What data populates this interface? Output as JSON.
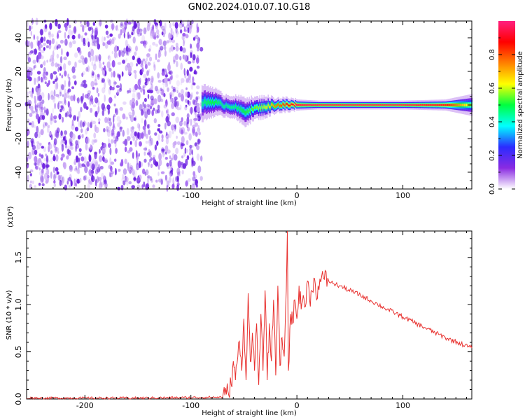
{
  "title": "GN02.2024.010.07.10.G18",
  "colors": {
    "snr_line": "#e8312f",
    "background": "#ffffff",
    "axes": "#000000",
    "noise_purple": "#6a1fe0",
    "colormap": [
      "#ffffff",
      "#8a2be2",
      "#2b2bff",
      "#00ffff",
      "#00ff40",
      "#ffff00",
      "#ff8000",
      "#ff0000",
      "#ff2080"
    ]
  },
  "chart_data": [
    {
      "type": "heatmap",
      "title": "GN02.2024.010.07.10.G18",
      "xlabel": "Height of straight line (km)",
      "ylabel": "Frequency (Hz)",
      "xlim": [
        -255,
        165
      ],
      "ylim": [
        -50,
        50
      ],
      "xticks": [
        -200,
        -100,
        0,
        100
      ],
      "yticks": [
        -40,
        -20,
        0,
        20,
        40
      ],
      "colorbar": {
        "label": "Normalized spectral amplitude",
        "range": [
          0.0,
          1.0
        ],
        "ticks": [
          "0.0",
          "0.2",
          "0.4",
          "0.6",
          "0.8"
        ]
      },
      "regions": {
        "noise": {
          "x_range": [
            -255,
            -90
          ],
          "freq_range": [
            -50,
            50
          ],
          "amplitude": 0.3
        },
        "signal_ridge": {
          "x": [
            -90,
            -80,
            -70,
            -60,
            -50,
            -40,
            -30,
            -20,
            -10,
            0,
            20,
            60,
            100,
            140,
            165
          ],
          "freq": [
            1,
            2,
            0,
            -1,
            -4,
            -2,
            -1,
            0,
            0,
            0,
            0,
            0,
            0,
            0,
            0
          ],
          "half_width_hz": [
            5,
            4,
            3,
            3,
            4,
            3,
            3,
            2,
            2,
            1.5,
            1.2,
            1.2,
            1.2,
            1.5,
            3
          ],
          "peak_amplitude": [
            0.45,
            0.5,
            0.45,
            0.45,
            0.5,
            0.55,
            0.6,
            0.75,
            0.85,
            0.95,
            0.95,
            0.95,
            0.95,
            0.9,
            0.55
          ]
        }
      }
    },
    {
      "type": "line",
      "xlabel": "Height of straight line (km)",
      "ylabel": "SNR (10 * v/v)",
      "y_multiplier": "(x10⁴)",
      "xlim": [
        -255,
        165
      ],
      "ylim": [
        0,
        17800
      ],
      "xticks": [
        -200,
        -100,
        0,
        100
      ],
      "yticks": [
        0,
        5000,
        10000,
        15000
      ],
      "ytick_labels": [
        "0.0",
        "0.5",
        "1.0",
        "1.5"
      ],
      "series": [
        {
          "x": [
            -255,
            -150,
            -100,
            -70,
            -68,
            -65,
            -62,
            -60,
            -58,
            -55,
            -52,
            -50,
            -48,
            -46,
            -44,
            -42,
            -40,
            -38,
            -36,
            -34,
            -32,
            -30,
            -28,
            -26,
            -24,
            -22,
            -20,
            -18,
            -16,
            -14,
            -12,
            -10,
            -9,
            -8,
            -6,
            -4,
            -2,
            0,
            2,
            4,
            6,
            8,
            10,
            12,
            14,
            16,
            18,
            20,
            25,
            30,
            35,
            40,
            60,
            80,
            100,
            120,
            140,
            165
          ],
          "y": [
            100,
            100,
            150,
            200,
            400,
            800,
            1500,
            4000,
            2000,
            6000,
            3000,
            8500,
            2000,
            11200,
            4000,
            7000,
            3000,
            8000,
            1500,
            9000,
            3000,
            11500,
            2000,
            8000,
            4000,
            10500,
            2500,
            12000,
            3500,
            6500,
            4500,
            11500,
            17800,
            3000,
            9000,
            8000,
            10500,
            8500,
            12000,
            9500,
            11000,
            9800,
            12500,
            10500,
            11500,
            12800,
            11000,
            12000,
            12800,
            12500,
            12200,
            12000,
            11000,
            9800,
            8700,
            7600,
            6500,
            5400
          ]
        }
      ]
    }
  ]
}
